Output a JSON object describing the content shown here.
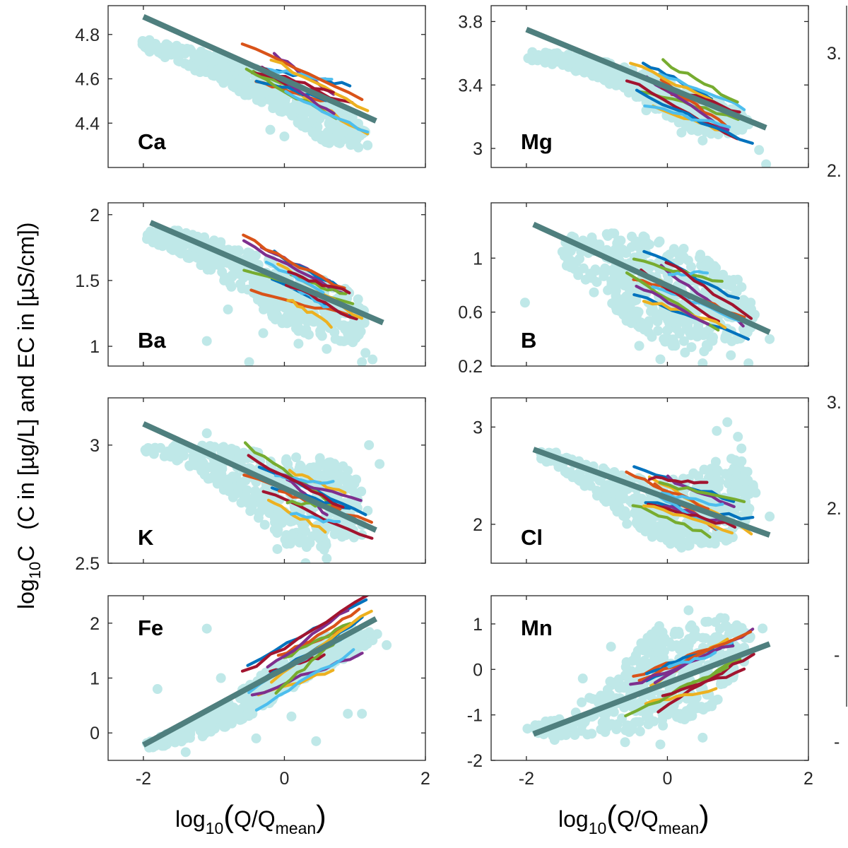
{
  "figure": {
    "ylabel_main": "log",
    "ylabel_sub": "10",
    "ylabel_var": "C",
    "ylabel_units": "(C in [µg/L] and EC in [µS/cm])",
    "xlabel_main": "log",
    "xlabel_sub": "10",
    "xlabel_open": "(",
    "xlabel_q": "Q/Q",
    "xlabel_qsub": "mean",
    "xlabel_close": ")",
    "cropped_right_ticks": [
      "3.",
      "2.",
      "3.",
      "2.",
      "-",
      "-"
    ]
  },
  "colors": {
    "scatter": "#bfe8e8",
    "fit_line": "#4f7f7e",
    "events": [
      "#0072bd",
      "#d95319",
      "#edb120",
      "#7e2f8e",
      "#77ac30",
      "#4dbeee",
      "#a2142f"
    ]
  },
  "chart_data": [
    {
      "type": "scatter",
      "name": "Ca",
      "xlim": [
        -2.5,
        2
      ],
      "ylim": [
        4.2,
        4.93
      ],
      "xticks": [
        -2,
        0,
        2
      ],
      "xticklabels": [
        "",
        "",
        ""
      ],
      "yticks": [
        4.4,
        4.6,
        4.8
      ],
      "yticklabels": [
        "4.4",
        "4.6",
        "4.8"
      ],
      "fit_line": [
        [
          -2,
          4.88
        ],
        [
          1.3,
          4.41
        ]
      ],
      "cloud": [
        [
          -2.05,
          4.78
        ],
        [
          -1.5,
          4.76
        ],
        [
          -1,
          4.71
        ],
        [
          -0.5,
          4.66
        ],
        [
          0,
          4.6
        ],
        [
          0.5,
          4.52
        ],
        [
          1,
          4.44
        ],
        [
          1.15,
          4.36
        ],
        [
          1,
          4.3
        ],
        [
          0.6,
          4.3
        ],
        [
          0.1,
          4.42
        ],
        [
          -0.4,
          4.5
        ],
        [
          -1,
          4.6
        ],
        [
          -1.5,
          4.67
        ],
        [
          -2.05,
          4.74
        ]
      ],
      "outliers": [
        [
          0.0,
          4.34
        ],
        [
          0.3,
          4.38
        ],
        [
          0.95,
          4.36
        ],
        [
          1.05,
          4.29
        ],
        [
          1.18,
          4.3
        ],
        [
          0.5,
          4.42
        ],
        [
          -0.2,
          4.37
        ],
        [
          0.7,
          4.33
        ]
      ],
      "grid": false,
      "legend": "none"
    },
    {
      "type": "scatter",
      "name": "Mg",
      "xlim": [
        -2.5,
        2
      ],
      "ylim": [
        2.88,
        3.9
      ],
      "xticks": [
        -2,
        0,
        2
      ],
      "xticklabels": [
        "",
        "",
        ""
      ],
      "yticks": [
        3,
        3.4,
        3.8
      ],
      "yticklabels": [
        "3",
        "3.4",
        "3.8"
      ],
      "fit_line": [
        [
          -2,
          3.75
        ],
        [
          1.4,
          3.13
        ]
      ],
      "cloud": [
        [
          -2,
          3.62
        ],
        [
          -1.5,
          3.6
        ],
        [
          -1,
          3.56
        ],
        [
          -0.5,
          3.5
        ],
        [
          0,
          3.42
        ],
        [
          0.5,
          3.34
        ],
        [
          1,
          3.25
        ],
        [
          1.2,
          3.15
        ],
        [
          0.9,
          3.08
        ],
        [
          0.4,
          3.1
        ],
        [
          0,
          3.2
        ],
        [
          -0.5,
          3.34
        ],
        [
          -1,
          3.44
        ],
        [
          -1.5,
          3.52
        ],
        [
          -2,
          3.56
        ]
      ],
      "outliers": [
        [
          1.3,
          2.99
        ],
        [
          1.4,
          2.9
        ],
        [
          0.5,
          3.05
        ],
        [
          0.2,
          3.1
        ],
        [
          0.85,
          3.12
        ],
        [
          -0.3,
          3.24
        ]
      ],
      "grid": false,
      "legend": "none"
    },
    {
      "type": "scatter",
      "name": "Ba",
      "xlim": [
        -2.5,
        2
      ],
      "ylim": [
        0.85,
        2.09
      ],
      "xticks": [
        -2,
        0,
        2
      ],
      "xticklabels": [
        "",
        "",
        ""
      ],
      "yticks": [
        1,
        1.5,
        2
      ],
      "yticklabels": [
        "1",
        "1.5",
        "2"
      ],
      "fit_line": [
        [
          -1.9,
          1.94
        ],
        [
          1.4,
          1.18
        ]
      ],
      "cloud": [
        [
          -1.95,
          1.88
        ],
        [
          -1.5,
          1.88
        ],
        [
          -1,
          1.82
        ],
        [
          -0.5,
          1.72
        ],
        [
          0,
          1.62
        ],
        [
          0.5,
          1.52
        ],
        [
          1,
          1.42
        ],
        [
          1.2,
          1.2
        ],
        [
          1,
          1.02
        ],
        [
          0.5,
          1.05
        ],
        [
          0,
          1.15
        ],
        [
          -0.5,
          1.35
        ],
        [
          -1,
          1.55
        ],
        [
          -1.5,
          1.7
        ],
        [
          -1.95,
          1.8
        ]
      ],
      "outliers": [
        [
          -1.1,
          1.04
        ],
        [
          -0.5,
          0.88
        ],
        [
          1.15,
          0.95
        ],
        [
          1.25,
          0.9
        ],
        [
          1.1,
          0.88
        ],
        [
          -0.8,
          1.28
        ],
        [
          0.6,
          0.98
        ],
        [
          0.2,
          1.02
        ],
        [
          -0.3,
          1.1
        ]
      ],
      "grid": false,
      "legend": "none"
    },
    {
      "type": "scatter",
      "name": "B",
      "xlim": [
        -2.5,
        2
      ],
      "ylim": [
        0.2,
        1.41
      ],
      "xticks": [
        -2,
        0,
        2
      ],
      "xticklabels": [
        "",
        "",
        ""
      ],
      "yticks": [
        0.2,
        0.6,
        1
      ],
      "yticklabels": [
        "0.2",
        "0.6",
        "1"
      ],
      "fit_line": [
        [
          -1.9,
          1.25
        ],
        [
          1.45,
          0.45
        ]
      ],
      "cloud": [
        [
          -1.5,
          1.18
        ],
        [
          -1,
          1.18
        ],
        [
          -0.5,
          1.2
        ],
        [
          0,
          1.12
        ],
        [
          0.5,
          1.02
        ],
        [
          1,
          0.85
        ],
        [
          1.3,
          0.6
        ],
        [
          1.1,
          0.38
        ],
        [
          0.5,
          0.3
        ],
        [
          0,
          0.35
        ],
        [
          -0.5,
          0.5
        ],
        [
          -1,
          0.72
        ],
        [
          -1.5,
          0.98
        ]
      ],
      "outliers": [
        [
          -2.02,
          0.67
        ],
        [
          -0.1,
          0.25
        ],
        [
          0.5,
          0.22
        ],
        [
          1.15,
          0.22
        ],
        [
          1.45,
          0.4
        ],
        [
          0.9,
          0.28
        ],
        [
          -0.4,
          0.35
        ],
        [
          0.25,
          0.3
        ]
      ],
      "grid": false,
      "legend": "none"
    },
    {
      "type": "scatter",
      "name": "K",
      "xlim": [
        -2.5,
        2
      ],
      "ylim": [
        2.5,
        3.2
      ],
      "xticks": [
        -2,
        0,
        2
      ],
      "xticklabels": [
        "",
        "",
        ""
      ],
      "yticks": [
        2.5,
        3
      ],
      "yticklabels": [
        "2.5",
        "3"
      ],
      "fit_line": [
        [
          -2,
          3.09
        ],
        [
          1.3,
          2.64
        ]
      ],
      "cloud": [
        [
          -2,
          3.01
        ],
        [
          -1.5,
          3.0
        ],
        [
          -1,
          3.0
        ],
        [
          -0.5,
          2.98
        ],
        [
          0,
          2.95
        ],
        [
          0.5,
          2.95
        ],
        [
          1,
          2.9
        ],
        [
          1.2,
          2.72
        ],
        [
          1,
          2.6
        ],
        [
          0.5,
          2.55
        ],
        [
          0,
          2.58
        ],
        [
          -0.5,
          2.72
        ],
        [
          -1,
          2.84
        ],
        [
          -1.5,
          2.93
        ],
        [
          -2,
          2.97
        ]
      ],
      "outliers": [
        [
          0.3,
          2.5
        ],
        [
          -0.1,
          2.56
        ],
        [
          1.1,
          2.62
        ],
        [
          1.35,
          2.92
        ],
        [
          1.2,
          3.0
        ],
        [
          0.6,
          2.52
        ],
        [
          -1.1,
          3.05
        ]
      ],
      "grid": false,
      "legend": "none"
    },
    {
      "type": "scatter",
      "name": "Cl",
      "xlim": [
        -2.5,
        2
      ],
      "ylim": [
        1.6,
        3.3
      ],
      "xticks": [
        -2,
        0,
        2
      ],
      "xticklabels": [
        "",
        "",
        ""
      ],
      "yticks": [
        2,
        3
      ],
      "yticklabels": [
        "2",
        "3"
      ],
      "fit_line": [
        [
          -1.9,
          2.77
        ],
        [
          1.45,
          1.89
        ]
      ],
      "cloud": [
        [
          -1.95,
          2.82
        ],
        [
          -1.5,
          2.72
        ],
        [
          -1,
          2.6
        ],
        [
          -0.5,
          2.5
        ],
        [
          0,
          2.44
        ],
        [
          0.5,
          2.6
        ],
        [
          1,
          2.75
        ],
        [
          1.3,
          2.3
        ],
        [
          1,
          1.86
        ],
        [
          0.5,
          1.76
        ],
        [
          0,
          1.8
        ],
        [
          -0.5,
          1.95
        ],
        [
          -1,
          2.28
        ],
        [
          -1.5,
          2.55
        ],
        [
          -1.95,
          2.72
        ]
      ],
      "outliers": [
        [
          0.85,
          3.05
        ],
        [
          1.0,
          2.9
        ],
        [
          1.05,
          2.78
        ],
        [
          0.7,
          2.96
        ],
        [
          1.45,
          2.08
        ],
        [
          0.2,
          1.76
        ],
        [
          -0.3,
          2.0
        ]
      ],
      "grid": false,
      "legend": "none"
    },
    {
      "type": "scatter",
      "name": "Fe",
      "xlim": [
        -2.5,
        2
      ],
      "ylim": [
        -0.5,
        2.5
      ],
      "xticks": [
        -2,
        0,
        2
      ],
      "xticklabels": [
        "-2",
        "0",
        "2"
      ],
      "yticks": [
        0,
        1,
        2
      ],
      "yticklabels": [
        "0",
        "1",
        "2"
      ],
      "fit_line": [
        [
          -2,
          -0.22
        ],
        [
          1.3,
          2.08
        ]
      ],
      "cloud": [
        [
          -2,
          -0.2
        ],
        [
          -1.5,
          0.08
        ],
        [
          -1,
          0.42
        ],
        [
          -0.5,
          0.9
        ],
        [
          0,
          1.34
        ],
        [
          0.5,
          1.72
        ],
        [
          1,
          1.92
        ],
        [
          1.35,
          1.8
        ],
        [
          1,
          1.4
        ],
        [
          0.5,
          1.12
        ],
        [
          0,
          0.72
        ],
        [
          -0.5,
          0.3
        ],
        [
          -1,
          0.0
        ],
        [
          -1.5,
          -0.2
        ],
        [
          -2,
          -0.3
        ]
      ],
      "outliers": [
        [
          -1.1,
          1.9
        ],
        [
          -0.2,
          1.1
        ],
        [
          0.9,
          0.35
        ],
        [
          1.1,
          0.35
        ],
        [
          0.45,
          -0.15
        ],
        [
          -0.4,
          -0.1
        ],
        [
          -1.4,
          -0.35
        ],
        [
          1.45,
          1.6
        ],
        [
          0.1,
          0.3
        ],
        [
          -0.9,
          1.0
        ],
        [
          -1.8,
          0.8
        ]
      ],
      "grid": false,
      "legend": "none"
    },
    {
      "type": "scatter",
      "name": "Mn",
      "xlim": [
        -2.5,
        2
      ],
      "ylim": [
        -2,
        1.62
      ],
      "xticks": [
        -2,
        0,
        2
      ],
      "xticklabels": [
        "-2",
        "0",
        "2"
      ],
      "yticks": [
        -2,
        -1,
        0,
        1
      ],
      "yticklabels": [
        "-2",
        "-1",
        "0",
        "1"
      ],
      "fit_line": [
        [
          -1.9,
          -1.42
        ],
        [
          1.45,
          0.56
        ]
      ],
      "cloud": [
        [
          -2,
          -1.25
        ],
        [
          -1.5,
          -1.0
        ],
        [
          -1,
          -0.5
        ],
        [
          -0.5,
          0.3
        ],
        [
          -0.2,
          1.0
        ],
        [
          0.2,
          0.9
        ],
        [
          0.8,
          1.2
        ],
        [
          1.2,
          0.75
        ],
        [
          1.1,
          0.1
        ],
        [
          0.6,
          -0.9
        ],
        [
          0,
          -1.3
        ],
        [
          -0.5,
          -1.4
        ],
        [
          -1,
          -1.45
        ],
        [
          -1.5,
          -1.5
        ],
        [
          -2,
          -1.42
        ]
      ],
      "outliers": [
        [
          -0.1,
          -1.65
        ],
        [
          -0.6,
          -1.6
        ],
        [
          0.3,
          1.3
        ],
        [
          -0.8,
          0.5
        ],
        [
          1.35,
          0.9
        ],
        [
          1.0,
          0.3
        ],
        [
          -1.2,
          -0.2
        ],
        [
          0.5,
          -1.5
        ],
        [
          -1.6,
          -1.55
        ]
      ],
      "grid": false,
      "legend": "none"
    }
  ]
}
